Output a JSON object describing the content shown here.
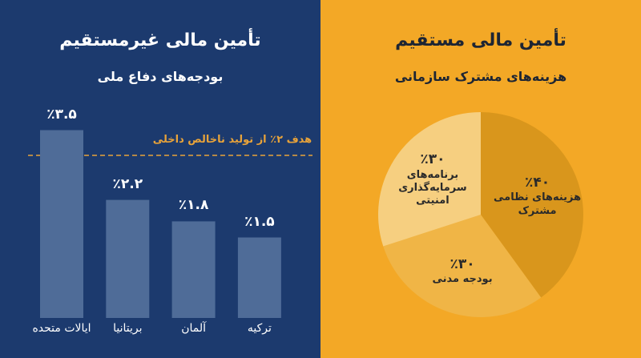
{
  "chart_data": [
    {
      "type": "bar",
      "title": "تأمین مالی غیرمستقیم",
      "subtitle": "بودجه‌های دفاع ملی",
      "annotation": "هدف ۲٪ از تولید ناخالص داخلی",
      "categories": [
        "ایالات متحده",
        "بریتانیا",
        "آلمان",
        "ترکیه"
      ],
      "values": [
        3.5,
        2.2,
        1.8,
        1.5
      ],
      "value_labels": [
        "٪۳.۵",
        "٪۲.۲",
        "٪۱.۸",
        "٪۱.۵"
      ],
      "color": "#4f6c98"
    },
    {
      "type": "pie",
      "title": "تأمین مالی مستقیم",
      "subtitle": "هزینه‌های مشترک سازمانی",
      "categories": [
        "هزینه‌های نظامی مشترک",
        "بودجه مدنی",
        "برنامه‌های سرمایه‌گذاری امنیتی"
      ],
      "values": [
        40,
        30,
        30
      ],
      "value_labels": [
        "٪۴۰",
        "٪۳۰",
        "٪۳۰"
      ],
      "colors": [
        "#d9961c",
        "#f0b546",
        "#f6cf80"
      ]
    }
  ]
}
